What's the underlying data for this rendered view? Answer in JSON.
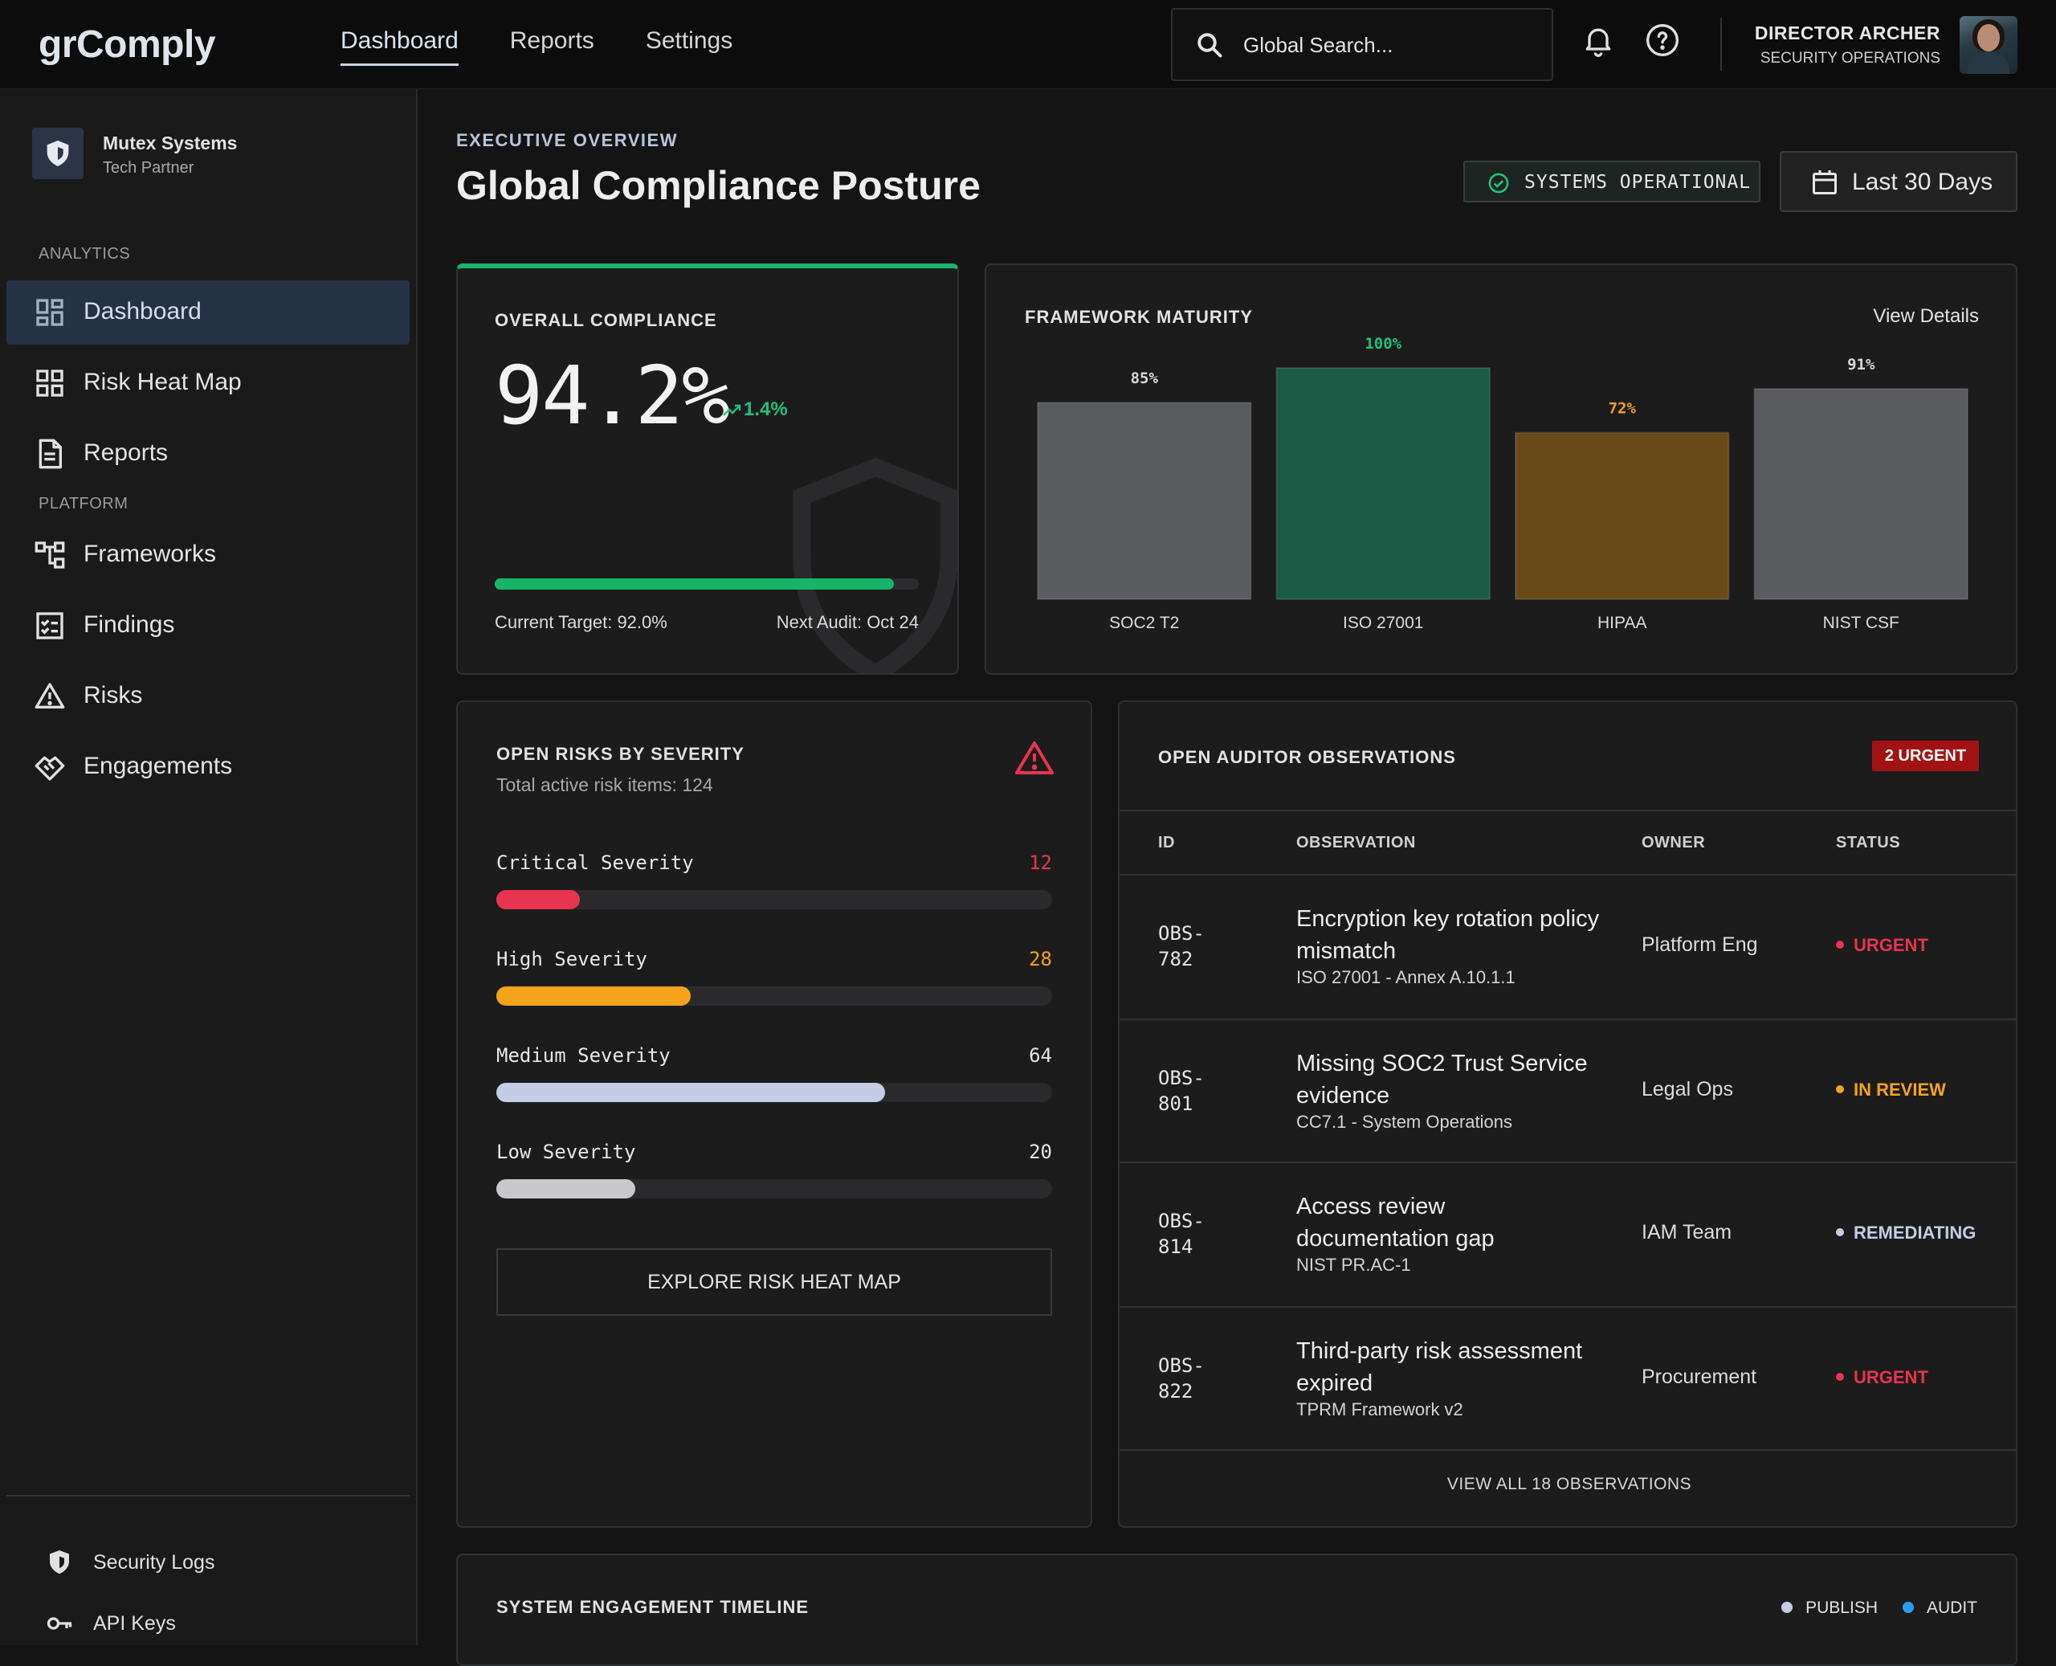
{
  "app": {
    "name": "grComply"
  },
  "topnav": {
    "items": [
      {
        "label": "Dashboard",
        "active": true
      },
      {
        "label": "Reports",
        "active": false
      },
      {
        "label": "Settings",
        "active": false
      }
    ]
  },
  "search": {
    "placeholder": "Global Search..."
  },
  "user": {
    "name": "DIRECTOR ARCHER",
    "role": "SECURITY OPERATIONS"
  },
  "sidebar": {
    "org": {
      "name": "Mutex Systems",
      "subtitle": "Tech Partner"
    },
    "analytics_label": "ANALYTICS",
    "platform_label": "PLATFORM",
    "analytics_items": [
      {
        "label": "Dashboard",
        "icon": "dashboard-icon",
        "active": true
      },
      {
        "label": "Risk Heat Map",
        "icon": "grid-icon",
        "active": false
      },
      {
        "label": "Reports",
        "icon": "document-icon",
        "active": false
      }
    ],
    "platform_items": [
      {
        "label": "Frameworks",
        "icon": "hierarchy-icon"
      },
      {
        "label": "Findings",
        "icon": "checklist-icon"
      },
      {
        "label": "Risks",
        "icon": "warning-icon"
      },
      {
        "label": "Engagements",
        "icon": "handshake-icon"
      }
    ],
    "footer_items": [
      {
        "label": "Security Logs",
        "icon": "shield-icon"
      },
      {
        "label": "API Keys",
        "icon": "key-icon"
      }
    ]
  },
  "header": {
    "eyebrow": "EXECUTIVE OVERVIEW",
    "title": "Global Compliance Posture",
    "status": "SYSTEMS OPERATIONAL",
    "date_range": "Last 30 Days"
  },
  "compliance": {
    "title": "OVERALL COMPLIANCE",
    "value": "94.2%",
    "delta": "1.4%",
    "progress": 0.942,
    "target": "Current Target: 92.0%",
    "next_audit": "Next Audit: Oct 24",
    "colors": {
      "accent": "#18b46a"
    }
  },
  "framework": {
    "title": "FRAMEWORK MATURITY",
    "view_details": "View Details"
  },
  "chart_data": {
    "type": "bar",
    "categories": [
      "SOC2 T2",
      "ISO 27001",
      "HIPAA",
      "NIST CSF"
    ],
    "values": [
      85,
      100,
      72,
      91
    ],
    "data_labels": [
      "85%",
      "100%",
      "72%",
      "91%"
    ],
    "colors": [
      "#5a5b5e",
      "#1b5a44",
      "#6a4a18",
      "#5a5b5e"
    ],
    "label_colors": [
      "#d8d8d8",
      "#22c27a",
      "#f0a020",
      "#d8d8d8"
    ],
    "ylim": [
      0,
      100
    ]
  },
  "risks": {
    "title": "OPEN RISKS BY SEVERITY",
    "subtitle": "Total active risk items: 124",
    "severities": [
      {
        "label": "Critical Severity",
        "count": "12",
        "fraction": 0.15,
        "color": "#e8344e"
      },
      {
        "label": "High Severity",
        "count": "28",
        "fraction": 0.35,
        "color": "#f5a31a"
      },
      {
        "label": "Medium Severity",
        "count": "64",
        "fraction": 0.7,
        "color": "#c4cde3"
      },
      {
        "label": "Low Severity",
        "count": "20",
        "fraction": 0.25,
        "color": "#c8c8ca"
      }
    ],
    "button": "EXPLORE RISK HEAT MAP"
  },
  "observations": {
    "title": "OPEN AUDITOR OBSERVATIONS",
    "urgent_badge": "2 URGENT",
    "columns": [
      "ID",
      "OBSERVATION",
      "OWNER",
      "STATUS"
    ],
    "rows": [
      {
        "id": "OBS-782",
        "title": "Encryption key rotation policy mismatch",
        "ref": "ISO 27001 - Annex A.10.1.1",
        "owner": "Platform Eng",
        "status": "URGENT",
        "status_color": "#e8344e"
      },
      {
        "id": "OBS-801",
        "title": "Missing SOC2 Trust Service evidence",
        "ref": "CC7.1 - System Operations",
        "owner": "Legal Ops",
        "status": "IN REVIEW",
        "status_color": "#f5a31a"
      },
      {
        "id": "OBS-814",
        "title": "Access review documentation gap",
        "ref": "NIST PR.AC-1",
        "owner": "IAM Team",
        "status": "REMEDIATING",
        "status_color": "#c4cde3"
      },
      {
        "id": "OBS-822",
        "title": "Third-party risk assessment expired",
        "ref": "TPRM Framework v2",
        "owner": "Procurement",
        "status": "URGENT",
        "status_color": "#e8344e"
      }
    ],
    "view_all": "VIEW ALL 18 OBSERVATIONS"
  },
  "timeline": {
    "title": "SYSTEM ENGAGEMENT TIMELINE",
    "legend": [
      {
        "label": "PUBLISH",
        "color": "#c4cde3"
      },
      {
        "label": "AUDIT",
        "color": "#2a9cf0"
      }
    ]
  }
}
